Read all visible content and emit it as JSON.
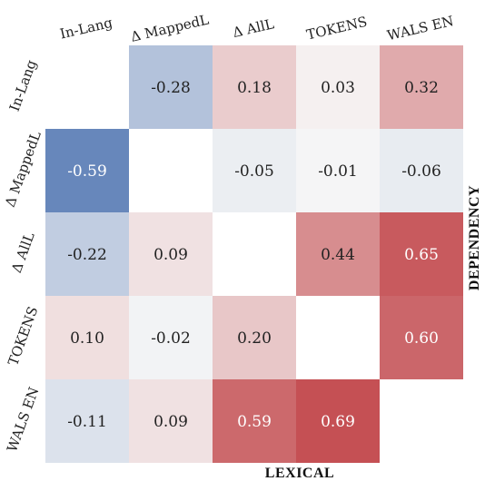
{
  "chart_data": {
    "type": "heatmap",
    "columns": [
      "In-Lang",
      "Δ MappedL",
      "Δ AllL",
      "TOKENS",
      "WALS EN"
    ],
    "rows": [
      "In-Lang",
      "Δ MappedL",
      "Δ AllL",
      "TOKENS",
      "WALS EN"
    ],
    "values": [
      [
        null,
        -0.28,
        0.18,
        0.03,
        0.32
      ],
      [
        -0.59,
        null,
        -0.05,
        -0.01,
        -0.06
      ],
      [
        -0.22,
        0.09,
        null,
        0.44,
        0.65
      ],
      [
        0.1,
        -0.02,
        0.2,
        null,
        0.6
      ],
      [
        -0.11,
        0.09,
        0.59,
        0.69,
        null
      ]
    ],
    "xlabel": "LEXICAL",
    "ylabel": "DEPENDENCY",
    "colormap": {
      "negative": "#4c72b0",
      "zero": "#f7f7f7",
      "positive": "#c44e52"
    },
    "vrange": [
      -0.7,
      0.7
    ]
  }
}
